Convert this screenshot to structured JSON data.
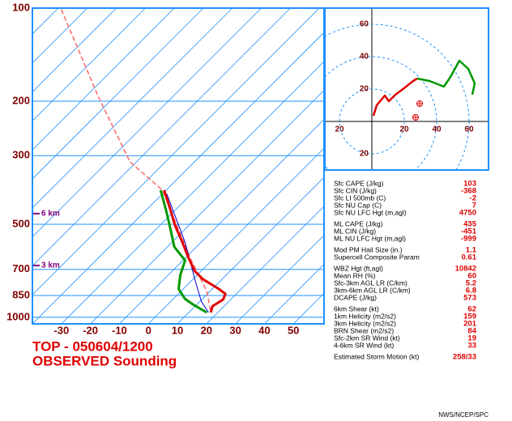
{
  "chart_data": [
    {
      "type": "skewt",
      "title": "TOP - 050604/1200",
      "subtitle": "OBSERVED Sounding",
      "yscale": "log",
      "ylim": [
        1050,
        100
      ],
      "yticks": [
        100,
        200,
        300,
        500,
        700,
        850,
        1000
      ],
      "xlim": [
        -40,
        60
      ],
      "xticks": [
        -30,
        -20,
        -10,
        0,
        10,
        20,
        30,
        40,
        50
      ],
      "series": [
        {
          "color": "#ff7070",
          "style": "dashed",
          "pressure": [
            101,
            193,
            314,
            388,
            508,
            648,
            825,
            965
          ],
          "values": [
            -138.5,
            -95.8,
            -62.3,
            -41.3,
            -23.7,
            -7.8,
            9.0,
            17.6
          ]
        },
        {
          "color": "#0000cc",
          "style": "thin",
          "pressure": [
            399,
            574,
            753,
            887,
            965
          ],
          "values": [
            -38.5,
            -15.3,
            0.6,
            10.4,
            16.8
          ]
        },
        {
          "color": "#e00000",
          "style": "bold",
          "pressure": [
            965,
            920,
            876,
            840,
            810,
            753,
            709,
            640,
            574,
            502,
            451,
            388
          ],
          "values": [
            17.6,
            16.0,
            17.4,
            16.2,
            12.3,
            3.4,
            -2.2,
            -9.2,
            -16.2,
            -25.1,
            -31.5,
            -40.7
          ]
        },
        {
          "color": "#009900",
          "style": "bold",
          "pressure": [
            965,
            909,
            871,
            810,
            731,
            655,
            592,
            524,
            456,
            388
          ],
          "values": [
            16.2,
            8.7,
            3.9,
            -1.6,
            -5.8,
            -9.2,
            -17.6,
            -24.5,
            -32.4,
            -41.9
          ]
        }
      ],
      "annotations": [
        {
          "text": "6 km",
          "pressure": 462,
          "color": "#800080"
        },
        {
          "text": "3 km",
          "pressure": 680,
          "color": "#800080"
        }
      ]
    },
    {
      "type": "hodograph",
      "xlim": [
        -29,
        72
      ],
      "ylim": [
        -30,
        70
      ],
      "xticks": [
        {
          "value": -20,
          "label": "20"
        },
        20,
        40,
        60
      ],
      "yticks": [
        {
          "value": -20,
          "label": "20"
        },
        20,
        40,
        60
      ],
      "series": [
        {
          "color": "#e00000",
          "x": [
            1,
            3,
            8,
            10.5,
            14.5,
            20.5,
            25.5,
            28
          ],
          "values": [
            3.5,
            10,
            16,
            12.5,
            16.5,
            21,
            25,
            26.5
          ]
        },
        {
          "color": "#009900",
          "x": [
            28,
            35.5,
            44.5,
            48.5,
            54,
            59.5,
            63.5,
            62
          ],
          "values": [
            26.5,
            25,
            21.5,
            27.5,
            37.5,
            32.5,
            23.5,
            16.5
          ]
        }
      ],
      "markers": {
        "color": "#e00000",
        "x": [
          29.5,
          27
        ],
        "values": [
          11,
          2.5
        ]
      }
    }
  ],
  "parameters": {
    "groups": [
      [
        {
          "label": "Sfc CAPE (J/kg)",
          "value": 103
        },
        {
          "label": "Sfc CIN (J/kg)",
          "value": -368
        },
        {
          "label": "Sfc LI 500mb (C)",
          "value": -2
        },
        {
          "label": "Sfc NU Cap (C)",
          "value": 7
        },
        {
          "label": "Sfc NU LFC Hgt (m,agl)",
          "value": 4750
        }
      ],
      [
        {
          "label": "ML CAPE (J/kg)",
          "value": 435
        },
        {
          "label": "ML CIN (J/kg)",
          "value": -451
        },
        {
          "label": "ML NU LFC Hgt (m,agl)",
          "value": -999
        }
      ],
      [
        {
          "label": "Mod PM Hail Size (in.)",
          "value": 1.1
        },
        {
          "label": "Supercell Composite Param",
          "value": 0.61
        }
      ],
      [
        {
          "label": "WBZ Hgt (ft,agl)",
          "value": 10842
        },
        {
          "label": "Mean RH (%)",
          "value": 60
        },
        {
          "label": "Sfc-3km AGL LR (C/km)",
          "value": 5.2
        },
        {
          "label": "3km-6km AGL LR (C/km)",
          "value": 6.8
        },
        {
          "label": "DCAPE (J/kg)",
          "value": 573
        }
      ],
      [
        {
          "label": "6km Shear (kt)",
          "value": 62
        },
        {
          "label": "1km Helicity (m2/s2)",
          "value": 159
        },
        {
          "label": "3km Helicity (m2/s2)",
          "value": 201
        },
        {
          "label": "BRN Shear (m2/s2)",
          "value": 84
        },
        {
          "label": "Sfc-2km SR Wind (kt)",
          "value": 19
        },
        {
          "label": "4-6km SR Wind (kt)",
          "value": 33
        }
      ],
      [
        {
          "label": "Estimated Storm Motion (kt)",
          "value": "258/33"
        }
      ]
    ]
  },
  "footer": "NWS/NCEP/SPC"
}
